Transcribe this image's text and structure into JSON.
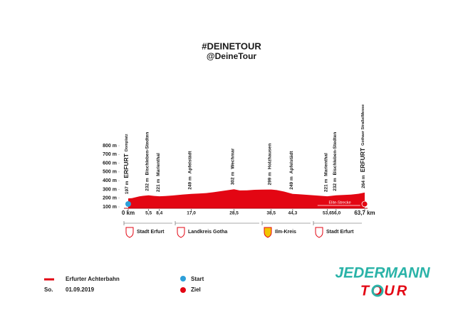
{
  "chart_data": {
    "type": "area",
    "title": "#DEINETOUR",
    "subtitle": "@DeineTour",
    "x": [
      0,
      1,
      2,
      3,
      4,
      5.5,
      7,
      8.4,
      10,
      12,
      14,
      17,
      19,
      21,
      23,
      25,
      27,
      28.5,
      30,
      32,
      34,
      36,
      38.5,
      40,
      42,
      44.3,
      46,
      48,
      50,
      52,
      53.6,
      56,
      58,
      60,
      62,
      63.7
    ],
    "series": [
      {
        "name": "Erfurter Achterbahn",
        "color": "#e30613",
        "values": [
          197,
          200,
          210,
          220,
          226,
          232,
          225,
          221,
          224,
          230,
          238,
          249,
          252,
          258,
          268,
          280,
          292,
          302,
          288,
          290,
          295,
          298,
          299,
          292,
          275,
          249,
          245,
          238,
          232,
          226,
          221,
          232,
          236,
          240,
          250,
          264
        ]
      }
    ],
    "xlim": [
      0,
      63.7
    ],
    "ylim": [
      100,
      800
    ],
    "xticks": [
      {
        "value": 0,
        "label": "0 km"
      },
      {
        "value": 5.5,
        "label": "5,5"
      },
      {
        "value": 8.4,
        "label": "8,4"
      },
      {
        "value": 17,
        "label": "17,0"
      },
      {
        "value": 28.5,
        "label": "28,5"
      },
      {
        "value": 38.5,
        "label": "38,5"
      },
      {
        "value": 44.3,
        "label": "44,3"
      },
      {
        "value": 53.6,
        "label": "53,6"
      },
      {
        "value": 56,
        "label": "56,0"
      },
      {
        "value": 63.7,
        "label": "63,7 km"
      }
    ],
    "yticks": [
      {
        "value": 100,
        "label": "100 m"
      },
      {
        "value": 200,
        "label": "200 m"
      },
      {
        "value": 300,
        "label": "300 m"
      },
      {
        "value": 400,
        "label": "400 m"
      },
      {
        "value": 500,
        "label": "500 m"
      },
      {
        "value": 600,
        "label": "600 m"
      },
      {
        "value": 700,
        "label": "700 m"
      },
      {
        "value": 800,
        "label": "800 m"
      }
    ],
    "grid": false,
    "waypoints": [
      {
        "x": 0,
        "elevation": "197 m",
        "name": "ERFURT",
        "detail": "Domplatz"
      },
      {
        "x": 5.5,
        "elevation": "232 m",
        "name": "Bischleben-Stedten"
      },
      {
        "x": 8.4,
        "elevation": "221 m",
        "name": "Marienthal"
      },
      {
        "x": 17,
        "elevation": "249 m",
        "name": "Apfelstädt"
      },
      {
        "x": 28.5,
        "elevation": "302 m",
        "name": "Wechmar"
      },
      {
        "x": 38.5,
        "elevation": "299 m",
        "name": "Holzhausen"
      },
      {
        "x": 44.3,
        "elevation": "249 m",
        "name": "Apfelstädt"
      },
      {
        "x": 53.6,
        "elevation": "221 m",
        "name": "Marienthal"
      },
      {
        "x": 56,
        "elevation": "232 m",
        "name": "Bischleben-Stedten"
      },
      {
        "x": 63.7,
        "elevation": "264 m",
        "name": "ERFURT",
        "detail": "Gothaer Straße/Messe"
      }
    ],
    "route_label": "Elite-Strecke",
    "regions": [
      "Stadt Erfurt",
      "Landkreis Gotha",
      "Ilm-Kreis",
      "Stadt Erfurt"
    ],
    "date": {
      "day": "So.",
      "date": "01.09.2019"
    },
    "markers": {
      "start": "Start",
      "finish": "Ziel"
    },
    "logo": {
      "top": "JEDERMANN",
      "bottom": "TOUR"
    }
  }
}
